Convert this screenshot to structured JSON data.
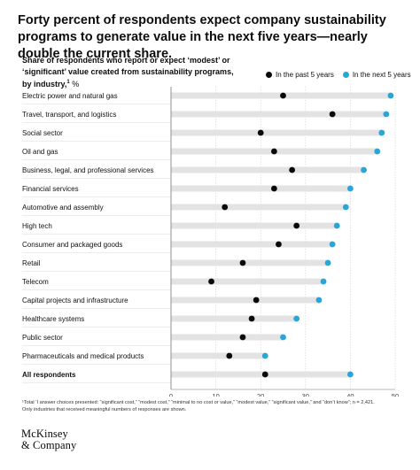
{
  "header": {
    "title": "Forty percent of respondents expect company sustainability programs to generate value in the next five years—nearly double the current share.",
    "subtitle": "Share of respondents who report or expect ‘modest’ or ‘significant’ value created from sustainability programs, by industry,",
    "subtitle_sup": "1",
    "subtitle_unit": " %"
  },
  "legend": {
    "past": "In the past 5 years",
    "next": "In the next 5 years"
  },
  "colors": {
    "past": "#0a0a0a",
    "next": "#2aa5d8",
    "bar": "#e3e3e3",
    "axis": "#777777",
    "grid": "#cfcfcf"
  },
  "chart_data": {
    "type": "dot",
    "categories": [
      "Electric power and natural gas",
      "Travel, transport, and logistics",
      "Social sector",
      "Oil and gas",
      "Business, legal, and professional services",
      "Financial services",
      "Automotive and assembly",
      "High tech",
      "Consumer and packaged goods",
      "Retail",
      "Telecom",
      "Capital projects and infrastructure",
      "Healthcare systems",
      "Public sector",
      "Pharmaceuticals and medical products",
      "All respondents"
    ],
    "series": [
      {
        "name": "In the past 5 years",
        "values": [
          25,
          36,
          20,
          23,
          27,
          23,
          12,
          28,
          24,
          16,
          9,
          19,
          18,
          16,
          13,
          21
        ]
      },
      {
        "name": "In the next 5 years",
        "values": [
          49,
          48,
          47,
          46,
          43,
          40,
          39,
          37,
          36,
          35,
          34,
          33,
          28,
          25,
          21,
          40
        ]
      }
    ],
    "xticks": [
      0,
      10,
      20,
      30,
      40,
      50
    ],
    "xlim": [
      0,
      50
    ],
    "bold_last_category": true
  },
  "footnote": {
    "line1": "¹Total ’I answer choices presented: “significant cost,” “modest cost,” “minimal to no cost or value,” “modest value,” “significant value,” and “don’t know”; n = 2,421.",
    "line2": "Only industries that received meaningful numbers of responses are shown."
  },
  "logo": {
    "line1": "McKinsey",
    "line2": "& Company"
  }
}
